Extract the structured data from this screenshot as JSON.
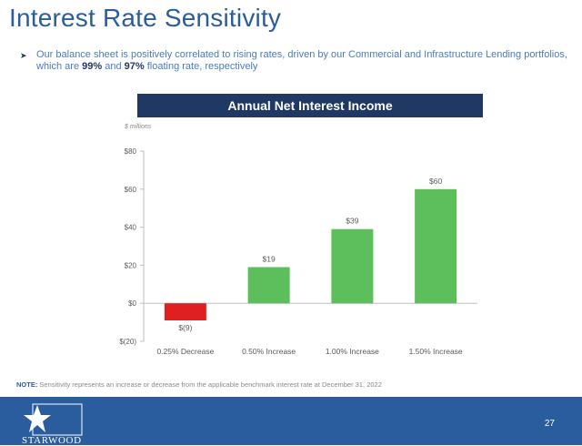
{
  "slide": {
    "title": "Interest Rate Sensitivity",
    "bullet_part1": "Our balance sheet is positively correlated to rising rates, driven by our Commercial and Infrastructure Lending portfolios, which are ",
    "bullet_pct1": "99%",
    "bullet_part2": " and ",
    "bullet_pct2": "97%",
    "bullet_part3": " floating rate, respectively",
    "note_label": "NOTE:",
    "note_text": " Sensitivity represents an increase or decrease from the applicable benchmark interest rate at December 31, 2022",
    "brand": "STARWOOD",
    "page_number": "27"
  },
  "chart_data": {
    "type": "bar",
    "title": "Annual Net Interest Income",
    "units_label": "$ millions",
    "categories": [
      "0.25% Decrease",
      "0.50% Increase",
      "1.00% Increase",
      "1.50% Increase"
    ],
    "values": [
      -9,
      19,
      39,
      60
    ],
    "data_labels": [
      "$(9)",
      "$19",
      "$39",
      "$60"
    ],
    "ylim": [
      -20,
      80
    ],
    "yticks": [
      80,
      60,
      40,
      20,
      0,
      -20
    ],
    "ytick_labels": [
      "$80",
      "$60",
      "$40",
      "$20",
      "$0",
      "$(20)"
    ],
    "colors": {
      "negative": "#e02020",
      "positive": "#5cbf5c"
    },
    "grid": false
  },
  "colors": {
    "brand_blue": "#2a5d9e",
    "header_navy": "#1f3864"
  }
}
